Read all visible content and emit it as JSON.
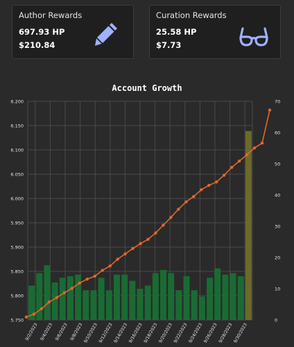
{
  "cards": {
    "author": {
      "title": "Author Rewards",
      "hp": "697.93 HP",
      "usd": "$210.84",
      "icon": "pencil-icon"
    },
    "curation": {
      "title": "Curation Rewards",
      "hp": "25.58 HP",
      "usd": "$7.73",
      "icon": "glasses-icon"
    }
  },
  "colors": {
    "accent_icon": "#9fb1ff",
    "bar": "#1a6b33",
    "bar_highlight": "#6b6a2a",
    "line": "#e3672a"
  },
  "chart_data": {
    "type": "bar",
    "title": "Account Growth",
    "x_tick_labels": [
      "9/2/2023",
      "9/4/2023",
      "9/6/2023",
      "9/8/2023",
      "9/10/2023",
      "9/12/2023",
      "9/14/2023",
      "9/16/2023",
      "9/18/2023",
      "9/20/2023",
      "9/22/2023",
      "9/24/2023",
      "9/26/2023",
      "9/28/2023",
      "9/30/2023"
    ],
    "left_axis": {
      "ticks": [
        "5.750",
        "5.800",
        "5.850",
        "5.900",
        "5.950",
        "6.000",
        "6.050",
        "6.100",
        "6.150",
        "6.200"
      ],
      "range": [
        5.75,
        6.2
      ]
    },
    "right_axis": {
      "ticks": [
        "0",
        "10",
        "20",
        "30",
        "40",
        "50",
        "60",
        "70"
      ],
      "range": [
        0,
        70
      ]
    },
    "series": [
      {
        "type": "bar",
        "axis": "right",
        "values": [
          11,
          15,
          17.5,
          12,
          13.5,
          14,
          14.5,
          9.5,
          9.5,
          13.5,
          9.5,
          14.5,
          14.5,
          12.5,
          10,
          11,
          15,
          16,
          15,
          9.5,
          14,
          9.5,
          7.5,
          13.5,
          16.5,
          14.5,
          15,
          14,
          60.5
        ]
      },
      {
        "type": "line",
        "axis": "left",
        "values": [
          5.756,
          5.762,
          5.773,
          5.787,
          5.796,
          5.806,
          5.815,
          5.826,
          5.834,
          5.84,
          5.852,
          5.861,
          5.875,
          5.886,
          5.897,
          5.907,
          5.916,
          5.929,
          5.945,
          5.961,
          5.978,
          5.993,
          6.004,
          6.018,
          6.027,
          6.034,
          6.048,
          6.064,
          6.077,
          6.09,
          6.104,
          6.114,
          6.182
        ]
      }
    ],
    "grid": true
  }
}
